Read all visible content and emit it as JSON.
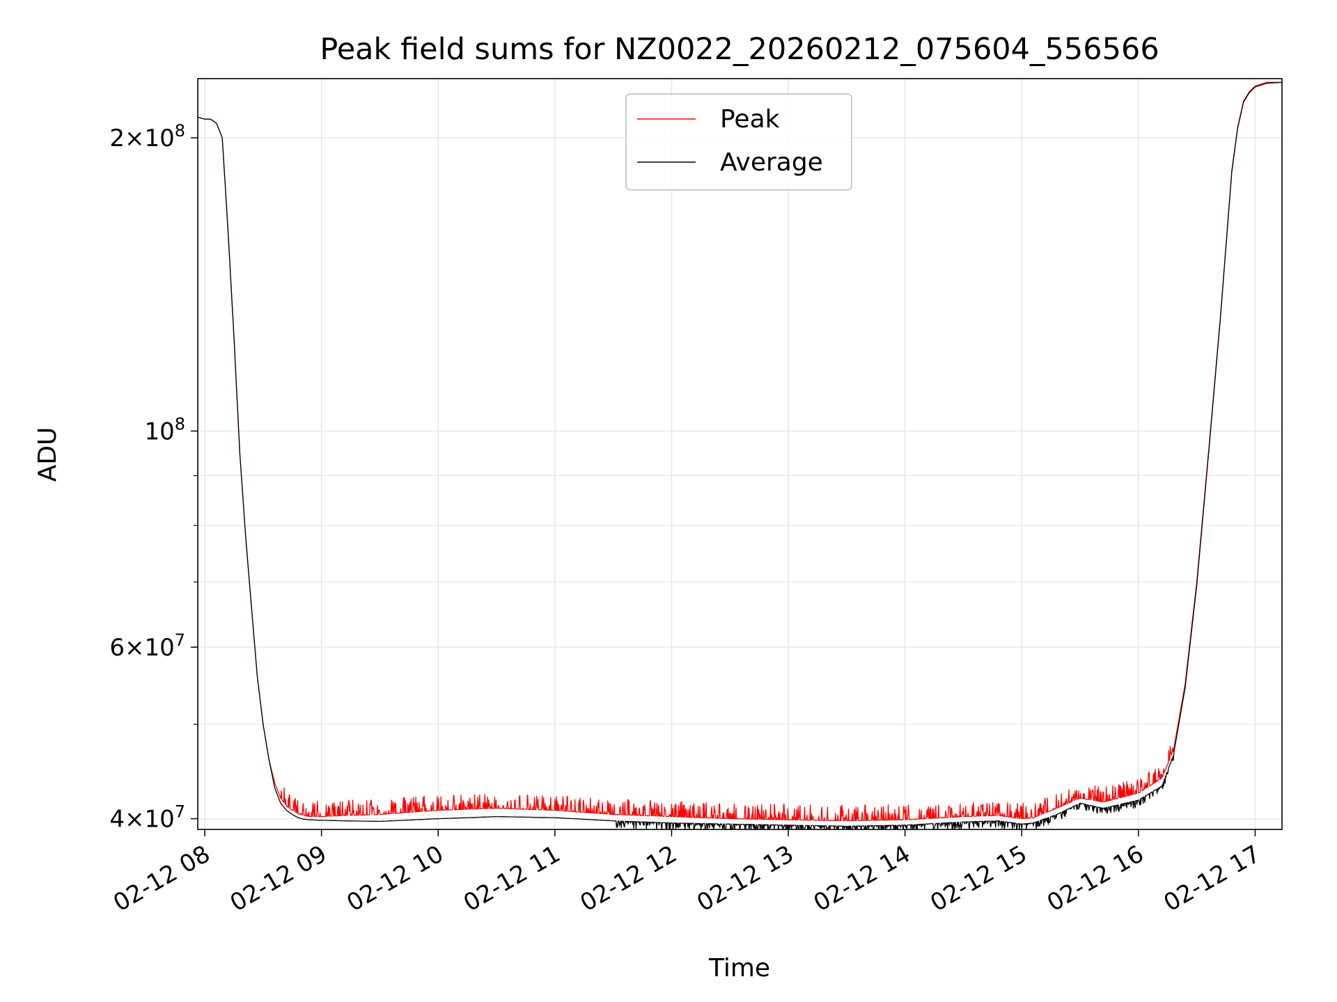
{
  "chart_data": {
    "type": "line",
    "title": "Peak field sums for NZ0022_20260212_075604_556566",
    "xlabel": "Time",
    "ylabel": "ADU",
    "yscale": "log",
    "ylim": [
      39000000,
      230000000
    ],
    "xlim_hours": [
      7.94,
      17.23
    ],
    "grid": true,
    "legend_position": "top-center",
    "x_ticks": [
      {
        "hour": 8,
        "label": "02-12 08"
      },
      {
        "hour": 9,
        "label": "02-12 09"
      },
      {
        "hour": 10,
        "label": "02-12 10"
      },
      {
        "hour": 11,
        "label": "02-12 11"
      },
      {
        "hour": 12,
        "label": "02-12 12"
      },
      {
        "hour": 13,
        "label": "02-12 13"
      },
      {
        "hour": 14,
        "label": "02-12 14"
      },
      {
        "hour": 15,
        "label": "02-12 15"
      },
      {
        "hour": 16,
        "label": "02-12 16"
      },
      {
        "hour": 17,
        "label": "02-12 17"
      }
    ],
    "y_major_ticks": [
      {
        "value": 40000000,
        "mant": "4",
        "exp": "7"
      },
      {
        "value": 60000000,
        "mant": "6",
        "exp": "7"
      },
      {
        "value": 100000000,
        "mant": "",
        "exp": "8"
      },
      {
        "value": 200000000,
        "mant": "2",
        "exp": "8"
      }
    ],
    "y_minor_ticks": [
      50000000,
      70000000,
      80000000,
      90000000
    ],
    "series": [
      {
        "name": "Peak",
        "color": "#ff0000",
        "x_hours": [
          7.94,
          8.0,
          8.05,
          8.1,
          8.15,
          8.2,
          8.25,
          8.3,
          8.35,
          8.4,
          8.45,
          8.5,
          8.55,
          8.6,
          8.65,
          8.7,
          8.75,
          8.8,
          8.85,
          8.9,
          9.0,
          9.2,
          9.5,
          10.0,
          10.5,
          11.0,
          11.5,
          12.0,
          12.5,
          13.0,
          13.5,
          14.0,
          14.5,
          14.8,
          15.0,
          15.1,
          15.3,
          15.5,
          15.7,
          16.0,
          16.2,
          16.3,
          16.4,
          16.5,
          16.6,
          16.7,
          16.75,
          16.8,
          16.85,
          16.9,
          16.95,
          17.0,
          17.05,
          17.1,
          17.23
        ],
        "values": [
          210000000,
          209000000,
          209000000,
          207000000,
          200000000,
          160000000,
          125000000,
          95000000,
          78000000,
          66000000,
          56000000,
          50000000,
          46000000,
          43500000,
          42000000,
          41200000,
          40800000,
          40500000,
          40300000,
          40200000,
          40200000,
          40300000,
          40400000,
          40800000,
          41000000,
          40800000,
          40400000,
          40200000,
          40000000,
          39900000,
          39800000,
          39900000,
          40200000,
          40300000,
          40000000,
          40100000,
          41000000,
          42000000,
          41600000,
          42500000,
          44000000,
          47000000,
          55000000,
          70000000,
          95000000,
          130000000,
          155000000,
          185000000,
          205000000,
          218000000,
          223000000,
          226000000,
          227000000,
          228000000,
          228000000
        ],
        "noise_band": {
          "from_hour": 8.65,
          "to_hour": 16.3,
          "max_spike": 1500000,
          "direction": "up"
        }
      },
      {
        "name": "Average",
        "color": "#000000",
        "x_hours": [
          7.94,
          8.0,
          8.05,
          8.1,
          8.15,
          8.2,
          8.25,
          8.3,
          8.35,
          8.4,
          8.45,
          8.5,
          8.55,
          8.6,
          8.65,
          8.7,
          8.75,
          8.8,
          8.85,
          8.9,
          9.0,
          9.2,
          9.5,
          10.0,
          10.5,
          11.0,
          11.5,
          12.0,
          12.5,
          13.0,
          13.5,
          14.0,
          14.5,
          14.8,
          15.0,
          15.1,
          15.3,
          15.5,
          15.7,
          16.0,
          16.2,
          16.3,
          16.4,
          16.5,
          16.6,
          16.7,
          16.75,
          16.8,
          16.85,
          16.9,
          16.95,
          17.0,
          17.05,
          17.1,
          17.23
        ],
        "values": [
          210000000,
          209000000,
          209000000,
          207000000,
          200000000,
          160000000,
          125000000,
          95000000,
          78000000,
          66000000,
          56000000,
          50000000,
          46000000,
          43000000,
          41500000,
          40800000,
          40400000,
          40100000,
          39950000,
          39900000,
          39850000,
          39800000,
          39750000,
          40000000,
          40200000,
          40100000,
          39800000,
          39600000,
          39500000,
          39400000,
          39300000,
          39400000,
          39700000,
          39800000,
          39500000,
          39600000,
          40400000,
          41500000,
          41000000,
          41800000,
          43200000,
          46500000,
          54500000,
          69500000,
          94500000,
          129500000,
          154500000,
          184500000,
          204500000,
          217500000,
          222500000,
          225500000,
          226500000,
          227500000,
          228000000
        ],
        "noise_band": {
          "from_hour": 11.5,
          "to_hour": 16.3,
          "max_spike": 700000,
          "direction": "down"
        }
      }
    ]
  }
}
